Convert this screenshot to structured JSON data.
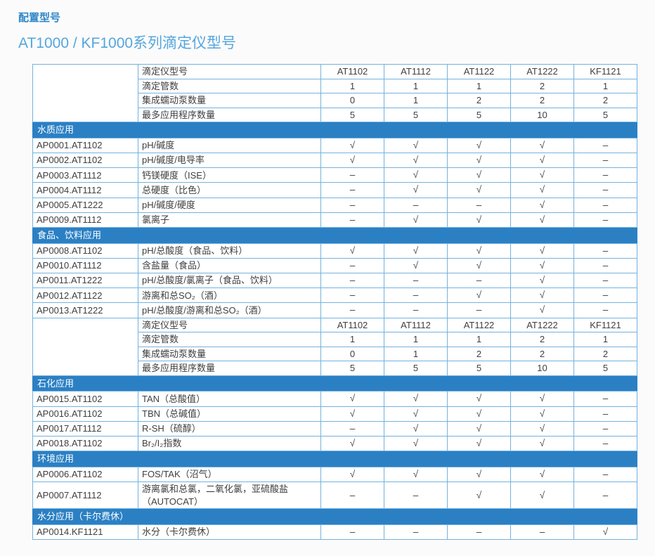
{
  "page": {
    "title": "配置型号",
    "subtitle": "AT1000 / KF1000系列滴定仪型号"
  },
  "colors": {
    "title": "#2e86c8",
    "subtitle": "#55a6dd",
    "banner_bg": "#2b80c4",
    "banner_text": "#ffffff",
    "border": "#74b2de",
    "cell_text": "#3f3f3f"
  },
  "symbols": {
    "available": "√",
    "not_available": "–"
  },
  "table": {
    "models_label": "滴定仪型号",
    "models": [
      "AT1102",
      "AT1112",
      "AT1122",
      "AT1222",
      "KF1121"
    ],
    "spec_rows": [
      {
        "label": "滴定管数",
        "values": [
          "1",
          "1",
          "1",
          "2",
          "1"
        ]
      },
      {
        "label": "集成蠕动泵数量",
        "values": [
          "0",
          "1",
          "2",
          "2",
          "2"
        ]
      },
      {
        "label": "最多应用程序数量",
        "values": [
          "5",
          "5",
          "5",
          "10",
          "5"
        ]
      }
    ],
    "blocks": [
      {
        "type": "header"
      },
      {
        "type": "section",
        "name": "水质应用",
        "rows": [
          {
            "id": "AP0001.AT1102",
            "desc": "pH/碱度",
            "marks": [
              "√",
              "√",
              "√",
              "√",
              "–"
            ]
          },
          {
            "id": "AP0002.AT1102",
            "desc": "pH/碱度/电导率",
            "marks": [
              "√",
              "√",
              "√",
              "√",
              "–"
            ]
          },
          {
            "id": "AP0003.AT1112",
            "desc": "钙镁硬度（ISE）",
            "marks": [
              "–",
              "√",
              "√",
              "√",
              "–"
            ]
          },
          {
            "id": "AP0004.AT1112",
            "desc": "总硬度（比色）",
            "marks": [
              "–",
              "√",
              "√",
              "√",
              "–"
            ]
          },
          {
            "id": "AP0005.AT1222",
            "desc": "pH/碱度/硬度",
            "marks": [
              "–",
              "–",
              "–",
              "√",
              "–"
            ]
          },
          {
            "id": "AP0009.AT1112",
            "desc": "氯离子",
            "marks": [
              "–",
              "√",
              "√",
              "√",
              "–"
            ]
          }
        ]
      },
      {
        "type": "section",
        "name": "食品、饮料应用",
        "rows": [
          {
            "id": "AP0008.AT1102",
            "desc": "pH/总酸度（食品、饮料）",
            "marks": [
              "√",
              "√",
              "√",
              "√",
              "–"
            ]
          },
          {
            "id": "AP0010.AT1112",
            "desc": "含盐量（食品）",
            "marks": [
              "–",
              "√",
              "√",
              "√",
              "–"
            ]
          },
          {
            "id": "AP0011.AT1222",
            "desc": "pH/总酸度/氯离子（食品、饮料）",
            "marks": [
              "–",
              "–",
              "–",
              "√",
              "–"
            ]
          },
          {
            "id": "AP0012.AT1122",
            "desc": "游离和总SO₂（酒）",
            "marks": [
              "–",
              "–",
              "√",
              "√",
              "–"
            ]
          },
          {
            "id": "AP0013.AT1222",
            "desc": "pH/总酸度/游离和总SO₂（酒）",
            "marks": [
              "–",
              "–",
              "–",
              "√",
              "–"
            ]
          }
        ]
      },
      {
        "type": "header"
      },
      {
        "type": "section",
        "name": "石化应用",
        "rows": [
          {
            "id": "AP0015.AT1102",
            "desc": "TAN（总酸值）",
            "marks": [
              "√",
              "√",
              "√",
              "√",
              "–"
            ]
          },
          {
            "id": "AP0016.AT1102",
            "desc": "TBN（总碱值）",
            "marks": [
              "√",
              "√",
              "√",
              "√",
              "–"
            ]
          },
          {
            "id": "AP0017.AT1112",
            "desc": "R-SH（硫醇）",
            "marks": [
              "–",
              "√",
              "√",
              "√",
              "–"
            ]
          },
          {
            "id": "AP0018.AT1102",
            "desc": "Br₂/I₂指数",
            "marks": [
              "√",
              "√",
              "√",
              "√",
              "–"
            ]
          }
        ]
      },
      {
        "type": "section",
        "name": "环境应用",
        "rows": [
          {
            "id": "AP0006.AT1102",
            "desc": "FOS/TAK（沼气）",
            "marks": [
              "√",
              "√",
              "√",
              "√",
              "–"
            ]
          },
          {
            "id": "AP0007.AT1112",
            "desc": "游离氯和总氯，二氧化氯，亚硫酸盐（AUTOCAT）",
            "marks": [
              "–",
              "–",
              "√",
              "√",
              "–"
            ]
          }
        ]
      },
      {
        "type": "section",
        "name": "水分应用（卡尔费休）",
        "rows": [
          {
            "id": "AP0014.KF1121",
            "desc": "水分（卡尔费休）",
            "marks": [
              "–",
              "–",
              "–",
              "–",
              "√"
            ]
          }
        ]
      }
    ]
  }
}
